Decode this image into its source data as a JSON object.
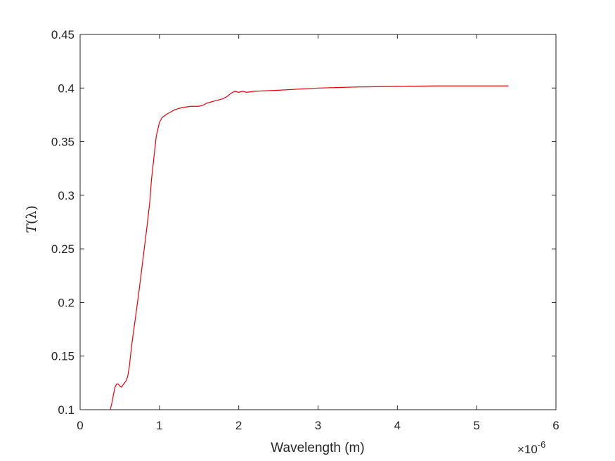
{
  "chart_data": {
    "type": "line",
    "title": "",
    "xlabel": "Wavelength (m)",
    "ylabel": "T(λ)",
    "ylabel_parts": {
      "var": "T",
      "open": "(",
      "sym": "λ",
      "close": ")"
    },
    "x_exponent": {
      "base": "×10",
      "power": "-6"
    },
    "xlim": [
      0,
      6
    ],
    "ylim": [
      0.1,
      0.45
    ],
    "xticks": [
      0,
      1,
      2,
      3,
      4,
      5,
      6
    ],
    "xtick_labels": [
      "0",
      "1",
      "2",
      "3",
      "4",
      "5",
      "6"
    ],
    "yticks": [
      0.1,
      0.15,
      0.2,
      0.25,
      0.3,
      0.35,
      0.4,
      0.45
    ],
    "ytick_labels": [
      "0.1",
      "0.15",
      "0.2",
      "0.25",
      "0.3",
      "0.35",
      "0.4",
      "0.45"
    ],
    "grid": true,
    "line_color": "#e8000b",
    "series": [
      {
        "x": [
          0.38,
          0.4,
          0.42,
          0.44,
          0.46,
          0.48,
          0.5,
          0.52,
          0.54,
          0.56,
          0.58,
          0.6,
          0.62,
          0.65,
          0.7,
          0.75,
          0.8,
          0.85,
          0.88,
          0.9,
          0.93,
          0.96,
          1.0,
          1.03,
          1.06,
          1.1,
          1.15,
          1.2,
          1.3,
          1.4,
          1.5,
          1.55,
          1.6,
          1.65,
          1.7,
          1.75,
          1.8,
          1.85,
          1.9,
          1.95,
          2.0,
          2.05,
          2.1,
          2.2,
          2.5,
          3.0,
          3.5,
          4.0,
          4.5,
          5.0,
          5.4
        ],
        "y": [
          0.1,
          0.106,
          0.114,
          0.121,
          0.124,
          0.124,
          0.122,
          0.121,
          0.123,
          0.125,
          0.127,
          0.131,
          0.14,
          0.16,
          0.187,
          0.215,
          0.245,
          0.275,
          0.295,
          0.315,
          0.335,
          0.355,
          0.368,
          0.372,
          0.374,
          0.376,
          0.378,
          0.38,
          0.382,
          0.383,
          0.383,
          0.384,
          0.386,
          0.387,
          0.388,
          0.389,
          0.39,
          0.392,
          0.395,
          0.397,
          0.396,
          0.397,
          0.396,
          0.397,
          0.398,
          0.4,
          0.401,
          0.4015,
          0.402,
          0.402,
          0.402
        ]
      }
    ]
  }
}
